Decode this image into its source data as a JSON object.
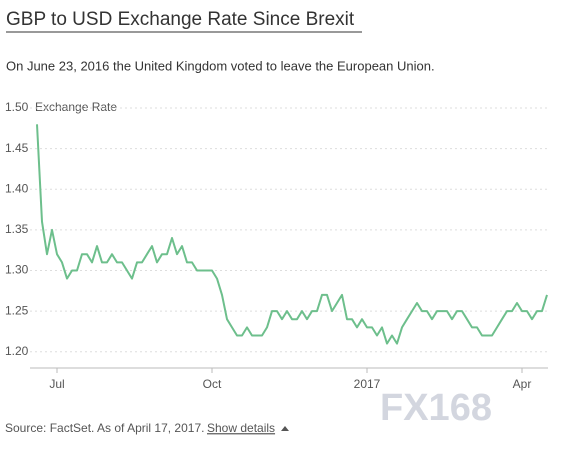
{
  "chart_data": {
    "type": "line",
    "title": "GBP to USD Exchange Rate Since Brexit",
    "subtitle": "On June 23, 2016 the United Kingdom voted to leave the European Union.",
    "y_label": "Exchange Rate",
    "source": "Source: FactSet. As of April 17, 2017.",
    "link": "Show details",
    "watermark": "FX168",
    "color": "#6dbf8c",
    "grid": true,
    "ylim": [
      1.18,
      1.5
    ],
    "yticks": [
      {
        "value": 1.5,
        "label": "1.50"
      },
      1.45,
      {
        "value": 1.4,
        "label": "1.40"
      },
      1.35,
      {
        "value": 1.3,
        "label": "1.30"
      },
      1.25,
      {
        "value": 1.2,
        "label": "1.20"
      }
    ],
    "categories": [
      null,
      null,
      null,
      null,
      "Jul",
      null,
      null,
      null,
      null,
      null,
      null,
      null,
      null,
      null,
      null,
      null,
      null,
      null,
      null,
      null,
      null,
      null,
      null,
      null,
      null,
      null,
      null,
      null,
      null,
      null,
      null,
      null,
      null,
      null,
      null,
      "Oct",
      null,
      null,
      null,
      null,
      null,
      null,
      null,
      null,
      null,
      null,
      null,
      null,
      null,
      null,
      null,
      null,
      null,
      null,
      null,
      null,
      null,
      null,
      null,
      null,
      null,
      null,
      null,
      null,
      null,
      null,
      "2017",
      null,
      null,
      null,
      null,
      null,
      null,
      null,
      null,
      null,
      null,
      null,
      null,
      null,
      null,
      null,
      null,
      null,
      null,
      null,
      null,
      null,
      null,
      null,
      null,
      null,
      null,
      null,
      null,
      null,
      null,
      "Apr",
      null,
      null,
      null,
      null,
      null
    ],
    "values": [
      1.48,
      1.36,
      1.32,
      1.35,
      1.32,
      1.31,
      1.29,
      1.3,
      1.3,
      1.32,
      1.32,
      1.31,
      1.33,
      1.31,
      1.31,
      1.32,
      1.31,
      1.31,
      1.3,
      1.29,
      1.31,
      1.31,
      1.32,
      1.33,
      1.31,
      1.32,
      1.32,
      1.34,
      1.32,
      1.33,
      1.31,
      1.31,
      1.3,
      1.3,
      1.3,
      1.3,
      1.29,
      1.27,
      1.24,
      1.23,
      1.22,
      1.22,
      1.23,
      1.22,
      1.22,
      1.22,
      1.23,
      1.25,
      1.25,
      1.24,
      1.25,
      1.24,
      1.24,
      1.25,
      1.24,
      1.25,
      1.25,
      1.27,
      1.27,
      1.25,
      1.26,
      1.27,
      1.24,
      1.24,
      1.23,
      1.24,
      1.23,
      1.23,
      1.22,
      1.23,
      1.21,
      1.22,
      1.21,
      1.23,
      1.24,
      1.25,
      1.26,
      1.25,
      1.25,
      1.24,
      1.25,
      1.25,
      1.25,
      1.24,
      1.25,
      1.25,
      1.24,
      1.23,
      1.23,
      1.22,
      1.22,
      1.22,
      1.23,
      1.24,
      1.25,
      1.25,
      1.26,
      1.25,
      1.25,
      1.24,
      1.25,
      1.25,
      1.27
    ]
  }
}
